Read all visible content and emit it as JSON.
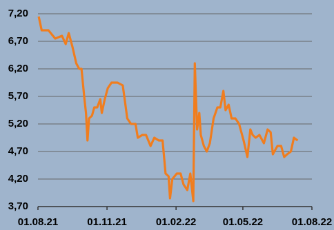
{
  "chart_data": {
    "type": "line",
    "x": [
      "2021-08-02",
      "2021-08-06",
      "2021-08-15",
      "2021-08-24",
      "2021-09-02",
      "2021-09-07",
      "2021-09-11",
      "2021-09-16",
      "2021-09-21",
      "2021-09-25",
      "2021-09-28",
      "2021-10-02",
      "2021-10-04",
      "2021-10-06",
      "2021-10-08",
      "2021-10-12",
      "2021-10-15",
      "2021-10-19",
      "2021-10-23",
      "2021-10-25",
      "2021-10-29",
      "2021-11-02",
      "2021-11-07",
      "2021-11-15",
      "2021-11-22",
      "2021-11-25",
      "2021-11-28",
      "2021-12-03",
      "2021-12-09",
      "2021-12-12",
      "2021-12-18",
      "2021-12-23",
      "2021-12-29",
      "2022-01-03",
      "2022-01-09",
      "2022-01-14",
      "2022-01-18",
      "2022-01-22",
      "2022-01-24",
      "2022-01-27",
      "2022-02-02",
      "2022-02-07",
      "2022-02-11",
      "2022-02-16",
      "2022-02-20",
      "2022-02-24",
      "2022-02-26",
      "2022-03-01",
      "2022-03-04",
      "2022-03-06",
      "2022-03-10",
      "2022-03-14",
      "2022-03-18",
      "2022-03-23",
      "2022-03-28",
      "2022-04-01",
      "2022-04-05",
      "2022-04-08",
      "2022-04-12",
      "2022-04-16",
      "2022-04-21",
      "2022-04-26",
      "2022-05-02",
      "2022-05-07",
      "2022-05-11",
      "2022-05-14",
      "2022-05-18",
      "2022-05-23",
      "2022-05-29",
      "2022-06-03",
      "2022-06-07",
      "2022-06-10",
      "2022-06-16",
      "2022-06-21",
      "2022-06-25",
      "2022-06-29",
      "2022-07-04",
      "2022-07-08",
      "2022-07-13"
    ],
    "series": [
      {
        "color": "#f07d1e",
        "values": [
          7.15,
          6.9,
          6.9,
          6.75,
          6.8,
          6.65,
          6.85,
          6.6,
          6.3,
          6.2,
          6.2,
          5.65,
          5.4,
          4.9,
          5.3,
          5.35,
          5.5,
          5.5,
          5.65,
          5.4,
          5.65,
          5.85,
          5.95,
          5.95,
          5.9,
          5.6,
          5.3,
          5.2,
          5.2,
          4.95,
          5.0,
          5.0,
          4.8,
          4.95,
          4.9,
          4.9,
          4.3,
          4.25,
          3.85,
          4.2,
          4.3,
          4.3,
          4.1,
          4.0,
          4.3,
          3.8,
          6.3,
          5.1,
          5.4,
          5.0,
          4.8,
          4.7,
          4.85,
          5.3,
          5.5,
          5.5,
          5.8,
          5.45,
          5.55,
          5.3,
          5.3,
          5.2,
          4.9,
          4.6,
          5.1,
          5.0,
          4.95,
          5.0,
          4.85,
          5.1,
          5.05,
          4.65,
          4.8,
          4.8,
          4.6,
          4.65,
          4.7,
          4.95,
          4.9
        ]
      }
    ],
    "xlim": [
      "2021-08-01",
      "2022-08-01"
    ],
    "xticks": [
      {
        "value": "2021-08-01",
        "label": "01.08.21"
      },
      {
        "value": "2021-11-01",
        "label": "01.11.21"
      },
      {
        "value": "2022-02-01",
        "label": "01.02.22"
      },
      {
        "value": "2022-05-01",
        "label": "01.05.22"
      },
      {
        "value": "2022-08-01",
        "label": "01.08.22"
      }
    ],
    "ylim": [
      3.7,
      7.2
    ],
    "yticks": [
      {
        "value": 3.7,
        "label": "3,70"
      },
      {
        "value": 4.2,
        "label": "4,20"
      },
      {
        "value": 4.7,
        "label": "4,70"
      },
      {
        "value": 5.2,
        "label": "5,20"
      },
      {
        "value": 5.7,
        "label": "5,70"
      },
      {
        "value": 6.2,
        "label": "6,20"
      },
      {
        "value": 6.7,
        "label": "6,70"
      },
      {
        "value": 7.2,
        "label": "7,20"
      }
    ],
    "grid": true
  }
}
